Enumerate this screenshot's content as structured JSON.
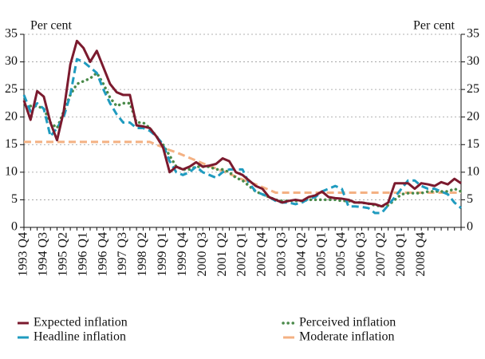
{
  "chart_data": {
    "type": "line",
    "ylabel": "Per cent",
    "y2label": "Per cent",
    "categories": [
      "1993 Q4",
      null,
      null,
      "1994 Q3",
      null,
      null,
      "1995 Q2",
      null,
      null,
      "1996 Q1",
      null,
      null,
      "1996 Q4",
      null,
      null,
      "1997 Q3",
      null,
      null,
      "1998 Q2",
      null,
      null,
      "1999 Q1",
      null,
      null,
      "1999 Q4",
      null,
      null,
      "2000 Q3",
      null,
      null,
      "2001 Q2",
      null,
      null,
      "2002 Q1",
      null,
      null,
      "2002 Q4",
      null,
      null,
      "2003 Q3",
      null,
      null,
      "2004 Q2",
      null,
      null,
      "2005 Q1",
      null,
      null,
      "2005 Q4",
      null,
      null,
      "2006 Q3",
      null,
      null,
      "2007 Q2",
      null,
      null,
      "2008 Q1",
      null,
      null,
      "2008 Q4",
      null,
      null,
      null,
      null,
      null,
      null
    ],
    "series": [
      {
        "name": "Expected inflation",
        "color": "#7b1a2e",
        "style": "solid",
        "values": [
          23,
          19.5,
          24.7,
          23.7,
          19,
          15.8,
          21,
          29.5,
          33.8,
          32.5,
          30,
          32,
          29,
          26,
          24.5,
          24,
          24,
          18.5,
          18.3,
          18,
          16.5,
          14.5,
          10,
          11,
          10.5,
          11,
          11.8,
          11,
          11.2,
          11.5,
          12.5,
          12,
          10,
          9.5,
          8.5,
          7.5,
          7,
          5.5,
          5,
          4.5,
          4.8,
          5,
          4.8,
          5.5,
          5.8,
          6.5,
          5.5,
          5.3,
          5.2,
          5,
          4.5,
          4.5,
          4.3,
          4.2,
          3.8,
          4.5,
          8,
          8,
          8,
          7,
          8,
          7.8,
          7.5,
          8.2,
          7.8,
          8.8,
          8
        ]
      },
      {
        "name": "Headline inflation",
        "color": "#1f9bbf",
        "style": "dashed",
        "values": [
          24,
          21,
          22.5,
          21.5,
          16.5,
          18,
          20,
          24,
          30.5,
          30,
          29,
          28,
          25,
          22.5,
          20.5,
          19,
          19,
          18,
          18,
          17.5,
          16.5,
          15,
          12,
          10,
          9.5,
          10,
          11,
          10,
          9.5,
          9,
          10,
          10.5,
          10.5,
          10.5,
          8,
          6.5,
          6,
          5.5,
          4.8,
          4.5,
          4.5,
          4.2,
          4.5,
          5.2,
          5.5,
          6.5,
          7,
          7.5,
          7,
          3.8,
          3.8,
          3.7,
          3.5,
          2.6,
          2.6,
          4,
          5.5,
          7,
          8.5,
          8.5,
          7.5,
          7,
          7,
          6.5,
          6,
          4.5,
          3.5
        ]
      },
      {
        "name": "Perceived inflation",
        "color": "#4a8a4a",
        "style": "dotted",
        "values": [
          null,
          22,
          22,
          21.5,
          19,
          18,
          21,
          24,
          26,
          26.5,
          27,
          28,
          26,
          23.5,
          22,
          22.5,
          22.5,
          19,
          19,
          18,
          16.5,
          15,
          13,
          11,
          10.5,
          10.5,
          11,
          11,
          11,
          10.5,
          10.5,
          10,
          9,
          8.5,
          7.5,
          6.5,
          6,
          5.5,
          5,
          4.8,
          4.8,
          4.8,
          4.8,
          5,
          5,
          5,
          5,
          5,
          4.8,
          4.8,
          4.5,
          4.5,
          4.3,
          4,
          3.8,
          4,
          5,
          6,
          6.2,
          6.2,
          6.2,
          6.5,
          6.5,
          6.5,
          6.5,
          7,
          6.5
        ]
      },
      {
        "name": "Moderate inflation",
        "color": "#f4b183",
        "style": "dashed",
        "values": [
          15.5,
          15.5,
          15.5,
          15.5,
          15.5,
          15.5,
          15.5,
          15.5,
          15.5,
          15.5,
          15.5,
          15.5,
          15.5,
          15.5,
          15.5,
          15.5,
          15.5,
          15.5,
          15.5,
          15.5,
          15.0,
          14.5,
          14.0,
          13.6,
          13.1,
          12.6,
          12.1,
          11.6,
          11.1,
          10.7,
          10.2,
          9.7,
          9.2,
          8.7,
          8.2,
          7.8,
          7.3,
          6.8,
          6.3,
          6.3,
          6.3,
          6.3,
          6.3,
          6.3,
          6.3,
          6.3,
          6.3,
          6.3,
          6.3,
          6.3,
          6.3,
          6.3,
          6.3,
          6.3,
          6.3,
          6.3,
          6.3,
          6.3,
          6.3,
          6.3,
          6.3,
          6.3,
          6.3,
          6.3,
          6.3,
          6.3,
          6.3
        ]
      }
    ],
    "ylim": [
      0,
      35
    ],
    "yticks": [
      0,
      5,
      10,
      15,
      20,
      25,
      30,
      35
    ],
    "y2lim": [
      0,
      35
    ],
    "y2ticks": [
      0,
      5,
      10,
      15,
      20,
      25,
      30,
      35
    ],
    "grid": true
  }
}
